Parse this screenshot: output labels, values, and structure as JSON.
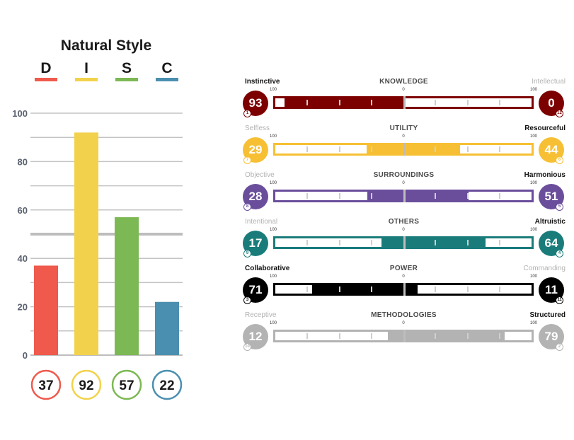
{
  "chart_data": [
    {
      "type": "bar",
      "title": "Natural Style",
      "categories": [
        "D",
        "I",
        "S",
        "C"
      ],
      "values": [
        37,
        92,
        57,
        22
      ],
      "ylim": [
        0,
        100
      ],
      "yticks": [
        0,
        20,
        40,
        60,
        80,
        100
      ],
      "reference_line": 50,
      "grid": true,
      "colors": [
        "#ef5a4c",
        "#f2d24c",
        "#7cb854",
        "#4b8fb0"
      ],
      "value_labels": [
        "37",
        "92",
        "57",
        "22"
      ]
    },
    {
      "type": "bar",
      "orientation": "diverging-horizontal",
      "scale_labels": [
        "100",
        "0",
        "100"
      ],
      "rows": [
        {
          "dimension": "KNOWLEDGE",
          "left_label": "Instinctive",
          "right_label": "Intellectual",
          "left_value": 93,
          "right_value": 0,
          "left_rank": "1",
          "right_rank": "12",
          "color": "#7d0000",
          "left_active": true,
          "right_active": false
        },
        {
          "dimension": "UTILITY",
          "left_label": "Selfless",
          "right_label": "Resourceful",
          "left_value": 29,
          "right_value": 44,
          "left_rank": "7",
          "right_rank": "6",
          "color": "#f7c034",
          "left_active": false,
          "right_active": true
        },
        {
          "dimension": "SURROUNDINGS",
          "left_label": "Objective",
          "right_label": "Harmonious",
          "left_value": 28,
          "right_value": 51,
          "left_rank": "8",
          "right_rank": "5",
          "color": "#6a4e9c",
          "left_active": false,
          "right_active": true
        },
        {
          "dimension": "OTHERS",
          "left_label": "Intentional",
          "right_label": "Altruistic",
          "left_value": 17,
          "right_value": 64,
          "left_rank": "9",
          "right_rank": "4",
          "color": "#1a7c7a",
          "left_active": false,
          "right_active": true
        },
        {
          "dimension": "POWER",
          "left_label": "Collaborative",
          "right_label": "Commanding",
          "left_value": 71,
          "right_value": 11,
          "left_rank": "3",
          "right_rank": "11",
          "color": "#000000",
          "left_active": true,
          "right_active": false
        },
        {
          "dimension": "METHODOLOGIES",
          "left_label": "Receptive",
          "right_label": "Structured",
          "left_value": 12,
          "right_value": 79,
          "left_rank": "10",
          "right_rank": "2",
          "color": "#b3b3b3",
          "left_active": false,
          "right_active": true
        }
      ]
    }
  ]
}
